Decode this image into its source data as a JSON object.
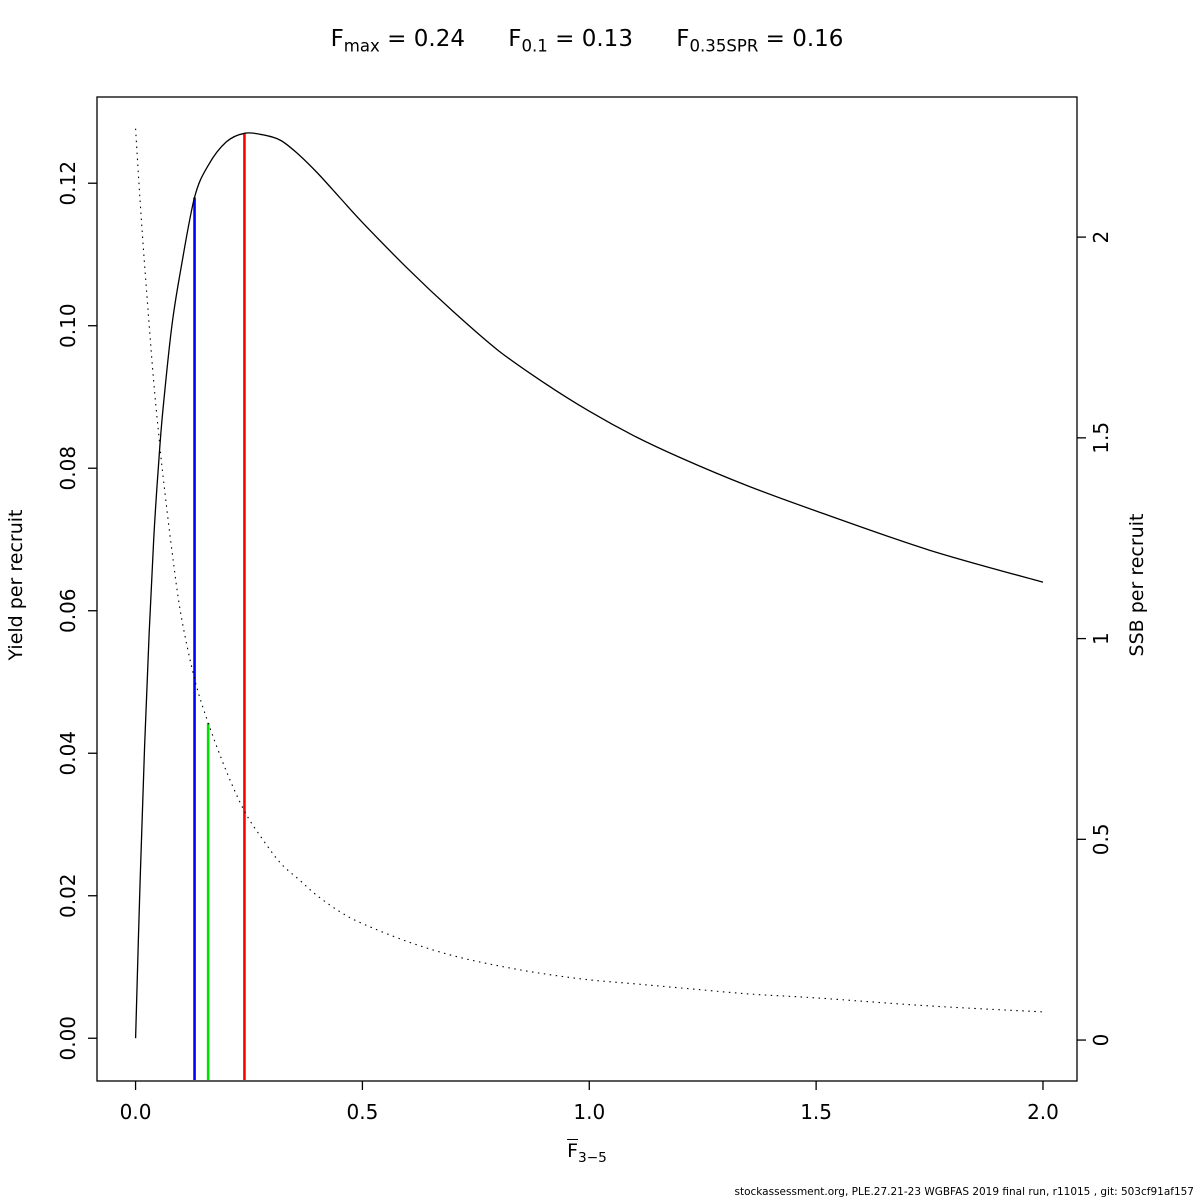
{
  "title": {
    "formulas": [
      {
        "symbol": "F",
        "subscript": "max",
        "rest": " = 0.24"
      },
      {
        "symbol": "F",
        "subscript": "0.1",
        "rest": " = 0.13"
      },
      {
        "symbol": "F",
        "subscript": "0.35SPR",
        "rest": " = 0.16"
      }
    ]
  },
  "x_axis": {
    "symbol": "F",
    "subscript": "3−5"
  },
  "y_axis_left_label": "Yield per recruit",
  "y_axis_right_label": "SSB per recruit",
  "footer": {
    "text": "stockassessment.org, PLE.27.21-23 WGBFAS 2019 final run, r11015 , git: 503cf91af157"
  },
  "chart_data": {
    "type": "line",
    "title": "Fmax = 0.24   F0.1 = 0.13   F0.35SPR = 0.16",
    "xlabel": "F (mean ages 3-5)",
    "ylabel_left": "Yield per recruit",
    "ylabel_right": "SSB per recruit",
    "x_range": [
      -0.085,
      2.075
    ],
    "y_left_range": [
      -0.006,
      0.1321
    ],
    "y_right_range": [
      -0.102,
      2.349
    ],
    "x_ticks": [
      0.0,
      0.5,
      1.0,
      1.5,
      2.0
    ],
    "x_tick_labels": [
      "0.0",
      "0.5",
      "1.0",
      "1.5",
      "2.0"
    ],
    "y_left_ticks": [
      0.0,
      0.02,
      0.04,
      0.06,
      0.08,
      0.1,
      0.12
    ],
    "y_left_tick_labels": [
      "0.00",
      "0.02",
      "0.04",
      "0.06",
      "0.08",
      "0.10",
      "0.12"
    ],
    "y_right_ticks": [
      0,
      0.5,
      1,
      1.5,
      2
    ],
    "y_right_tick_labels": [
      "0",
      "0.5",
      "1",
      "1.5",
      "2"
    ],
    "x": [
      0,
      0.01,
      0.02,
      0.03,
      0.04,
      0.05,
      0.06,
      0.08,
      0.1,
      0.13,
      0.16,
      0.2,
      0.24,
      0.28,
      0.32,
      0.36,
      0.4,
      0.45,
      0.5,
      0.6,
      0.7,
      0.8,
      0.9,
      1.0,
      1.1,
      1.2,
      1.35,
      1.5,
      1.75,
      2.0
    ],
    "series": [
      {
        "name": "yield-per-recruit",
        "axis": "left",
        "style": "solid",
        "color": "#000000",
        "width": 1.3,
        "values": [
          0,
          0.022,
          0.041,
          0.057,
          0.07,
          0.08,
          0.088,
          0.1,
          0.108,
          0.118,
          0.1225,
          0.1258,
          0.127,
          0.1268,
          0.126,
          0.124,
          0.1215,
          0.118,
          0.1145,
          0.108,
          0.102,
          0.0965,
          0.092,
          0.088,
          0.0845,
          0.0815,
          0.0775,
          0.074,
          0.0685,
          0.064
        ]
      },
      {
        "name": "ssb-per-recruit",
        "axis": "right",
        "style": "dotted",
        "color": "#000000",
        "width": 1.1,
        "values": [
          2.27,
          2.09,
          1.93,
          1.78,
          1.64,
          1.52,
          1.41,
          1.22,
          1.06,
          0.9,
          0.79,
          0.67,
          0.57,
          0.5,
          0.44,
          0.4,
          0.36,
          0.32,
          0.29,
          0.245,
          0.21,
          0.185,
          0.165,
          0.15,
          0.14,
          0.13,
          0.115,
          0.105,
          0.085,
          0.07
        ]
      }
    ],
    "ref_lines": [
      {
        "name": "F0.1",
        "x": 0.13,
        "color": "#0000ff",
        "axis": "left",
        "y_top": 0.118
      },
      {
        "name": "F0.35SPR",
        "x": 0.16,
        "color": "#00e000",
        "axis": "right",
        "y_top": 0.79
      },
      {
        "name": "Fmax",
        "x": 0.24,
        "color": "#ff0000",
        "axis": "left",
        "y_top": 0.127
      }
    ]
  }
}
